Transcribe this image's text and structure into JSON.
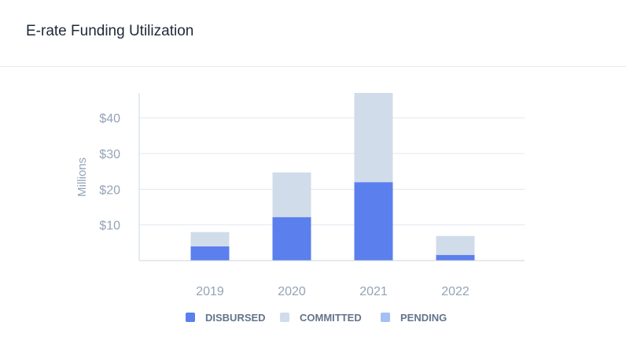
{
  "card": {
    "title": "E-rate Funding Utilization"
  },
  "chart_data": {
    "type": "bar",
    "stacked": true,
    "categories": [
      "2019",
      "2020",
      "2021",
      "2022"
    ],
    "series": [
      {
        "name": "DISBURSED",
        "values": [
          4,
          12.2,
          22,
          1.6
        ],
        "color": "#5b7fec"
      },
      {
        "name": "COMMITTED",
        "values": [
          4,
          12.5,
          25,
          5.3
        ],
        "color": "#d1dcea"
      },
      {
        "name": "PENDING",
        "values": [
          0,
          0,
          0,
          0
        ],
        "color": "#a3c0f3"
      }
    ],
    "ylabel": "Millions",
    "yticks": [
      10,
      20,
      30,
      40
    ],
    "ytick_labels": [
      "$10",
      "$20",
      "$30",
      "$40"
    ],
    "ylim": [
      0,
      47
    ],
    "grid": true,
    "legend": "bottom-center"
  }
}
